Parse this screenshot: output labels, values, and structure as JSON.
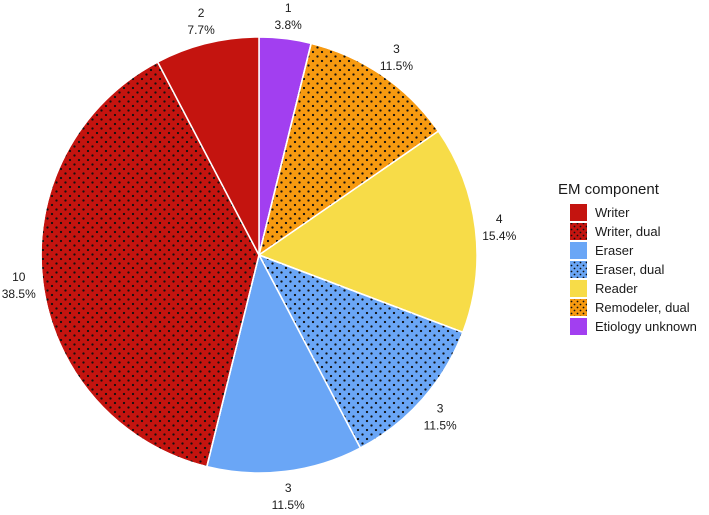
{
  "chart_data": {
    "type": "pie",
    "legend": {
      "title": "EM component",
      "position": "right"
    },
    "slices": [
      {
        "category": "Etiology unknown",
        "count": "1",
        "percent": "3.8%",
        "value": 1,
        "color": "#a23ff0",
        "dotted": false
      },
      {
        "category": "Remodeler, dual",
        "count": "3",
        "percent": "11.5%",
        "value": 3,
        "color": "#f79a10",
        "dotted": true
      },
      {
        "category": "Reader",
        "count": "4",
        "percent": "15.4%",
        "value": 4,
        "color": "#f7dc48",
        "dotted": false
      },
      {
        "category": "Eraser, dual",
        "count": "3",
        "percent": "11.5%",
        "value": 3,
        "color": "#6aa6f6",
        "dotted": true
      },
      {
        "category": "Eraser",
        "count": "3",
        "percent": "11.5%",
        "value": 3,
        "color": "#6aa6f6",
        "dotted": false
      },
      {
        "category": "Writer, dual",
        "count": "10",
        "percent": "38.5%",
        "value": 10,
        "color": "#c4140f",
        "dotted": true
      },
      {
        "category": "Writer",
        "count": "2",
        "percent": "7.7%",
        "value": 2,
        "color": "#c4140f",
        "dotted": false
      }
    ],
    "legend_order": [
      "Writer",
      "Writer, dual",
      "Eraser",
      "Eraser, dual",
      "Reader",
      "Remodeler, dual",
      "Etiology unknown"
    ]
  }
}
